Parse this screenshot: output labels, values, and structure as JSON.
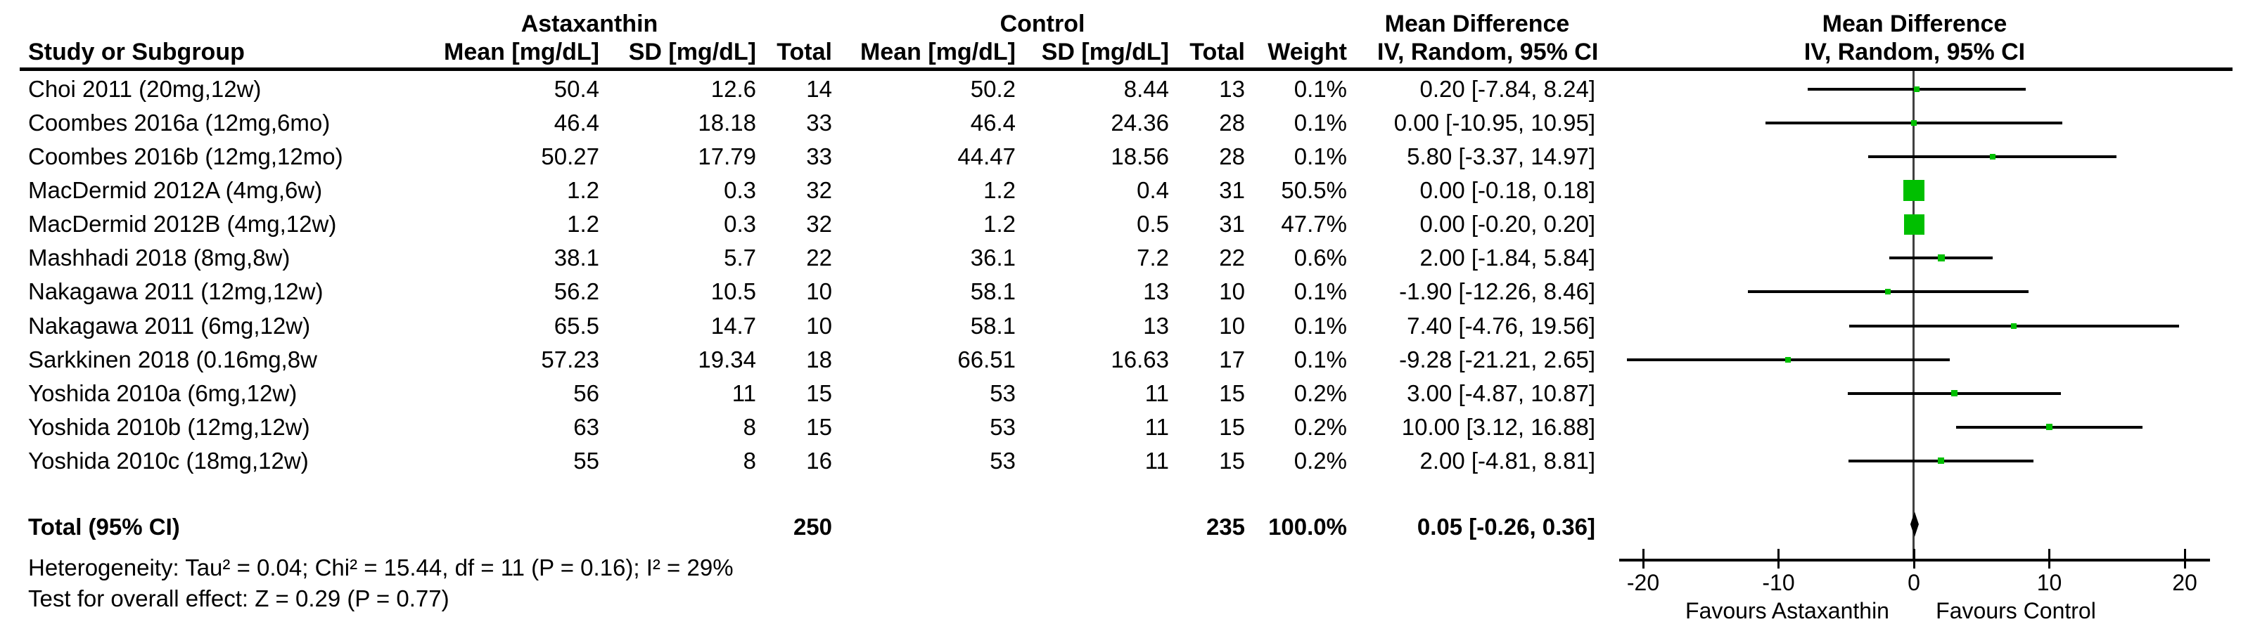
{
  "chart_data": {
    "type": "forest",
    "effect_measure": "Mean Difference",
    "method": "IV, Random, 95% CI",
    "groups": {
      "experimental": "Astaxanthin",
      "control": "Control"
    },
    "columns": {
      "study": "Study or Subgroup",
      "mean": "Mean [mg/dL]",
      "sd": "SD [mg/dL]",
      "total": "Total",
      "weight": "Weight",
      "md_header": "Mean Difference",
      "ci_header": "IV, Random, 95% CI"
    },
    "x_ticks": [
      -20,
      -10,
      0,
      10,
      20
    ],
    "xlim": [
      -21.8,
      21.8
    ],
    "favours_left": "Favours Astaxanthin",
    "favours_right": "Favours Control",
    "studies": [
      {
        "name": "Choi 2011 (20mg,12w)",
        "exp_mean": "50.4",
        "exp_sd": "12.6",
        "exp_total": "14",
        "ctl_mean": "50.2",
        "ctl_sd": "8.44",
        "ctl_total": "13",
        "weight": "0.1%",
        "weight_pct": 0.1,
        "ci_text": "0.20 [-7.84, 8.24]",
        "md": 0.2,
        "ci_low": -7.84,
        "ci_high": 8.24
      },
      {
        "name": "Coombes 2016a (12mg,6mo)",
        "exp_mean": "46.4",
        "exp_sd": "18.18",
        "exp_total": "33",
        "ctl_mean": "46.4",
        "ctl_sd": "24.36",
        "ctl_total": "28",
        "weight": "0.1%",
        "weight_pct": 0.1,
        "ci_text": "0.00 [-10.95, 10.95]",
        "md": 0,
        "ci_low": -10.95,
        "ci_high": 10.95
      },
      {
        "name": "Coombes 2016b (12mg,12mo)",
        "exp_mean": "50.27",
        "exp_sd": "17.79",
        "exp_total": "33",
        "ctl_mean": "44.47",
        "ctl_sd": "18.56",
        "ctl_total": "28",
        "weight": "0.1%",
        "weight_pct": 0.1,
        "ci_text": "5.80 [-3.37, 14.97]",
        "md": 5.8,
        "ci_low": -3.37,
        "ci_high": 14.97
      },
      {
        "name": "MacDermid 2012A (4mg,6w)",
        "exp_mean": "1.2",
        "exp_sd": "0.3",
        "exp_total": "32",
        "ctl_mean": "1.2",
        "ctl_sd": "0.4",
        "ctl_total": "31",
        "weight": "50.5%",
        "weight_pct": 50.5,
        "ci_text": "0.00 [-0.18, 0.18]",
        "md": 0,
        "ci_low": -0.18,
        "ci_high": 0.18
      },
      {
        "name": "MacDermid 2012B (4mg,12w)",
        "exp_mean": "1.2",
        "exp_sd": "0.3",
        "exp_total": "32",
        "ctl_mean": "1.2",
        "ctl_sd": "0.5",
        "ctl_total": "31",
        "weight": "47.7%",
        "weight_pct": 47.7,
        "ci_text": "0.00 [-0.20, 0.20]",
        "md": 0,
        "ci_low": -0.2,
        "ci_high": 0.2
      },
      {
        "name": "Mashhadi 2018 (8mg,8w)",
        "exp_mean": "38.1",
        "exp_sd": "5.7",
        "exp_total": "22",
        "ctl_mean": "36.1",
        "ctl_sd": "7.2",
        "ctl_total": "22",
        "weight": "0.6%",
        "weight_pct": 0.6,
        "ci_text": "2.00 [-1.84, 5.84]",
        "md": 2,
        "ci_low": -1.84,
        "ci_high": 5.84
      },
      {
        "name": "Nakagawa 2011 (12mg,12w)",
        "exp_mean": "56.2",
        "exp_sd": "10.5",
        "exp_total": "10",
        "ctl_mean": "58.1",
        "ctl_sd": "13",
        "ctl_total": "10",
        "weight": "0.1%",
        "weight_pct": 0.1,
        "ci_text": "-1.90 [-12.26, 8.46]",
        "md": -1.9,
        "ci_low": -12.26,
        "ci_high": 8.46
      },
      {
        "name": "Nakagawa 2011 (6mg,12w)",
        "exp_mean": "65.5",
        "exp_sd": "14.7",
        "exp_total": "10",
        "ctl_mean": "58.1",
        "ctl_sd": "13",
        "ctl_total": "10",
        "weight": "0.1%",
        "weight_pct": 0.1,
        "ci_text": "7.40 [-4.76, 19.56]",
        "md": 7.4,
        "ci_low": -4.76,
        "ci_high": 19.56
      },
      {
        "name": "Sarkkinen 2018 (0.16mg,8w",
        "exp_mean": "57.23",
        "exp_sd": "19.34",
        "exp_total": "18",
        "ctl_mean": "66.51",
        "ctl_sd": "16.63",
        "ctl_total": "17",
        "weight": "0.1%",
        "weight_pct": 0.1,
        "ci_text": "-9.28 [-21.21, 2.65]",
        "md": -9.28,
        "ci_low": -21.21,
        "ci_high": 2.65
      },
      {
        "name": "Yoshida 2010a (6mg,12w)",
        "exp_mean": "56",
        "exp_sd": "11",
        "exp_total": "15",
        "ctl_mean": "53",
        "ctl_sd": "11",
        "ctl_total": "15",
        "weight": "0.2%",
        "weight_pct": 0.2,
        "ci_text": "3.00 [-4.87, 10.87]",
        "md": 3,
        "ci_low": -4.87,
        "ci_high": 10.87
      },
      {
        "name": "Yoshida 2010b (12mg,12w)",
        "exp_mean": "63",
        "exp_sd": "8",
        "exp_total": "15",
        "ctl_mean": "53",
        "ctl_sd": "11",
        "ctl_total": "15",
        "weight": "0.2%",
        "weight_pct": 0.2,
        "ci_text": "10.00 [3.12, 16.88]",
        "md": 10,
        "ci_low": 3.12,
        "ci_high": 16.88
      },
      {
        "name": "Yoshida 2010c (18mg,12w)",
        "exp_mean": "55",
        "exp_sd": "8",
        "exp_total": "16",
        "ctl_mean": "53",
        "ctl_sd": "11",
        "ctl_total": "15",
        "weight": "0.2%",
        "weight_pct": 0.2,
        "ci_text": "2.00 [-4.81, 8.81]",
        "md": 2,
        "ci_low": -4.81,
        "ci_high": 8.81
      }
    ],
    "total": {
      "label": "Total (95% CI)",
      "exp_total": "250",
      "ctl_total": "235",
      "weight": "100.0%",
      "ci_text": "0.05 [-0.26, 0.36]",
      "md": 0.05,
      "ci_low": -0.26,
      "ci_high": 0.36
    },
    "heterogeneity": "Heterogeneity: Tau² = 0.04; Chi² = 15.44, df = 11 (P = 0.16); I² = 29%",
    "overall_effect": "Test for overall effect: Z = 0.29 (P = 0.77)",
    "colors": {
      "marker": "#00bf00",
      "ci_line": "#000000",
      "zero_line": "#404040",
      "diamond": "#000000"
    }
  }
}
